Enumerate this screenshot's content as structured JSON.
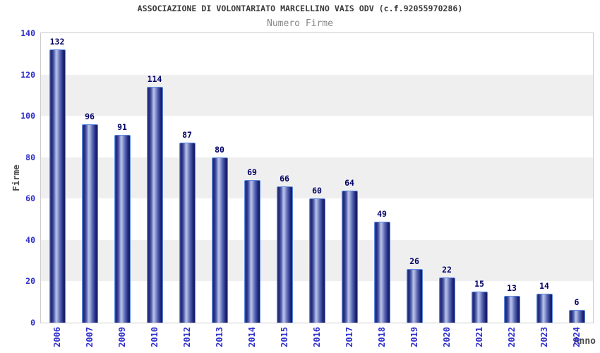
{
  "chart_data": {
    "type": "bar",
    "title": "ASSOCIAZIONE DI VOLONTARIATO MARCELLINO VAIS ODV (c.f.92055970286)",
    "subtitle": "Numero Firme",
    "categories": [
      "2006",
      "2007",
      "2009",
      "2010",
      "2012",
      "2013",
      "2014",
      "2015",
      "2016",
      "2017",
      "2018",
      "2019",
      "2020",
      "2021",
      "2022",
      "2023",
      "2024"
    ],
    "values": [
      132,
      96,
      91,
      114,
      87,
      80,
      69,
      66,
      60,
      64,
      49,
      26,
      22,
      15,
      13,
      14,
      6
    ],
    "xlabel": "Anno",
    "ylabel": "Firme",
    "ylim": [
      0,
      140
    ],
    "ytick_step": 20,
    "grid": "alternating-horizontal-bands",
    "legend": "none",
    "colors": {
      "tick_label_blue": "#2e2ecc",
      "value_label_navy": "#000066",
      "bar_dark": "#161d66",
      "bar_highlight": "#b9c2e8",
      "bar_border": "#5c8ae0",
      "band_gray": "#efefef",
      "plot_border": "#cccccc",
      "title_text": "#3a3a3a",
      "subtitle_text": "#878787",
      "axis_title_text": "#4a4a4a"
    }
  }
}
